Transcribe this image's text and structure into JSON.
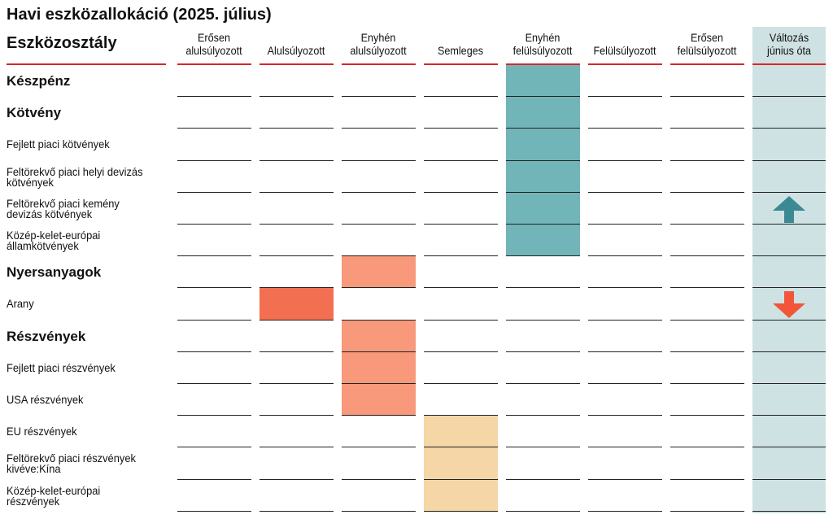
{
  "title": "Havi eszközallokáció (2025. július)",
  "category_header": "Eszközosztály",
  "columns": [
    {
      "line1": "Erősen",
      "line2": "alulsúlyozott"
    },
    {
      "line1": "",
      "line2": "Alulsúlyozott"
    },
    {
      "line1": "Enyhén",
      "line2": "alulsúlyozott"
    },
    {
      "line1": "",
      "line2": "Semleges"
    },
    {
      "line1": "Enyhén",
      "line2": "felülsúlyozott"
    },
    {
      "line1": "",
      "line2": "Felülsúlyozott"
    },
    {
      "line1": "Erősen",
      "line2": "felülsúlyozott"
    }
  ],
  "change_header": {
    "line1": "Változás",
    "line2": "június óta"
  },
  "rows": [
    {
      "line1": "Készpénz",
      "line2": "",
      "bold": true,
      "position": 4,
      "change": ""
    },
    {
      "line1": "Kötvény",
      "line2": "",
      "bold": true,
      "position": 4,
      "change": ""
    },
    {
      "line1": "Fejlett piaci kötvények",
      "line2": "",
      "bold": false,
      "position": 4,
      "change": ""
    },
    {
      "line1": "Feltörekvő piaci helyi devizás",
      "line2": "kötvények",
      "bold": false,
      "position": 4,
      "change": ""
    },
    {
      "line1": "Feltörekvő piaci kemény",
      "line2": "devizás kötvények",
      "bold": false,
      "position": 4,
      "change": "up"
    },
    {
      "line1": "Közép-kelet-európai",
      "line2": "államkötvények",
      "bold": false,
      "position": 4,
      "change": ""
    },
    {
      "line1": "Nyersanyagok",
      "line2": "",
      "bold": true,
      "position": 2,
      "change": ""
    },
    {
      "line1": "Arany",
      "line2": "",
      "bold": false,
      "position": 1,
      "change": "down"
    },
    {
      "line1": "Részvények",
      "line2": "",
      "bold": true,
      "position": 2,
      "change": ""
    },
    {
      "line1": "Fejlett piaci részvények",
      "line2": "",
      "bold": false,
      "position": 2,
      "change": ""
    },
    {
      "line1": "USA részvények",
      "line2": "",
      "bold": false,
      "position": 2,
      "change": ""
    },
    {
      "line1": "EU részvények",
      "line2": "",
      "bold": false,
      "position": 3,
      "change": ""
    },
    {
      "line1": "Feltörekvő piaci részvények",
      "line2": "kivéve:Kína",
      "bold": false,
      "position": 3,
      "change": ""
    },
    {
      "line1": "Közép-kelet-európai",
      "line2": "részvények",
      "bold": false,
      "position": 3,
      "change": ""
    }
  ],
  "colors": {
    "accent_rule": "#d9262b",
    "change_column_bg": "#cfe2e3",
    "position_fill": [
      "#f26f52",
      "#f26f52",
      "#f7997a",
      "#f5d6a6",
      "#72b5b8",
      "#72b5b8",
      "#72b5b8"
    ],
    "arrow_up": "#3b8a93",
    "arrow_down": "#f2553a"
  },
  "icons": {
    "up": "arrow-up-icon",
    "down": "arrow-down-icon"
  }
}
